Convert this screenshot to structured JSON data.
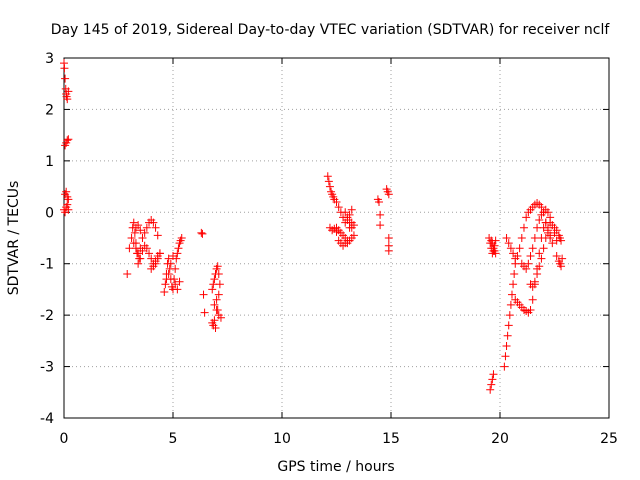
{
  "chart_data": {
    "type": "scatter",
    "title": "Day 145 of 2019, Sidereal Day-to-day VTEC variation (SDTVAR) for receiver nclf",
    "xlabel": "GPS time / hours",
    "ylabel": "SDTVAR / TECUs",
    "xlim": [
      0,
      25
    ],
    "ylim": [
      -4,
      3
    ],
    "xticks": [
      "0",
      "5",
      "10",
      "15",
      "20",
      "25"
    ],
    "yticks": [
      "-4",
      "-3",
      "-2",
      "-1",
      "0",
      "1",
      "2",
      "3"
    ],
    "grid": true,
    "marker": "plus",
    "color": "#ff0000",
    "series": [
      {
        "name": "SDTVAR",
        "x": [
          0.0,
          0.02,
          0.05,
          0.08,
          0.1,
          0.12,
          0.15,
          0.2,
          0.05,
          0.1,
          0.15,
          0.2,
          0.05,
          0.1,
          0.15,
          0.2,
          0.0,
          0.05,
          0.1,
          0.15,
          0.2,
          2.9,
          3.0,
          3.1,
          3.15,
          3.2,
          3.25,
          3.3,
          3.35,
          3.4,
          3.45,
          3.5,
          3.3,
          3.4,
          3.5,
          3.6,
          3.7,
          3.8,
          3.9,
          4.0,
          4.1,
          4.2,
          4.3,
          3.8,
          3.9,
          4.0,
          4.1,
          4.2,
          4.3,
          4.4,
          4.0,
          4.1,
          4.2,
          4.3,
          4.4,
          3.2,
          3.3,
          3.4,
          3.5,
          3.6,
          3.7,
          4.6,
          4.65,
          4.7,
          4.75,
          4.8,
          4.85,
          4.9,
          4.95,
          5.0,
          5.05,
          5.1,
          5.15,
          5.2,
          5.25,
          5.3,
          5.35,
          5.4,
          4.7,
          4.8,
          4.9,
          5.0,
          5.1,
          5.2,
          5.3,
          6.3,
          6.35,
          6.4,
          6.45,
          6.8,
          6.85,
          6.9,
          6.95,
          7.0,
          7.05,
          7.1,
          7.15,
          6.9,
          7.0,
          7.1,
          7.2,
          6.8,
          6.9,
          7.0,
          7.1,
          6.85,
          6.95,
          7.05,
          12.1,
          12.15,
          12.2,
          12.25,
          12.3,
          12.35,
          12.4,
          12.5,
          12.6,
          12.7,
          12.8,
          12.9,
          13.0,
          13.1,
          13.2,
          13.3,
          12.5,
          12.6,
          12.7,
          12.8,
          12.9,
          13.0,
          13.1,
          13.2,
          12.6,
          12.7,
          12.8,
          12.9,
          13.0,
          13.1,
          13.2,
          12.9,
          13.0,
          13.1,
          13.2,
          13.3,
          12.2,
          12.3,
          12.4,
          12.5,
          14.4,
          14.45,
          14.5,
          14.5,
          14.8,
          14.85,
          14.9,
          14.9,
          14.9,
          14.9,
          19.5,
          19.55,
          19.6,
          19.65,
          19.7,
          19.75,
          19.8,
          19.55,
          19.6,
          19.65,
          19.7,
          19.6,
          19.65,
          19.7,
          19.75,
          19.8,
          20.2,
          20.25,
          20.3,
          20.35,
          20.4,
          20.45,
          20.5,
          20.55,
          20.6,
          20.65,
          20.7,
          20.3,
          20.4,
          20.5,
          20.6,
          20.7,
          20.8,
          20.9,
          21.0,
          21.1,
          21.2,
          21.3,
          21.4,
          21.5,
          21.6,
          21.7,
          21.8,
          21.9,
          22.0,
          22.1,
          22.2,
          22.3,
          22.4,
          20.7,
          20.8,
          20.9,
          21.0,
          21.1,
          21.2,
          21.3,
          21.4,
          21.5,
          21.6,
          21.7,
          21.8,
          21.9,
          22.0,
          22.1,
          22.2,
          22.3,
          21.0,
          21.1,
          21.2,
          21.3,
          21.4,
          21.5,
          21.6,
          21.7,
          21.8,
          21.9,
          22.0,
          22.1,
          22.2,
          22.3,
          22.4,
          22.5,
          22.6,
          21.4,
          21.5,
          21.6,
          21.7,
          21.8,
          21.9,
          22.0,
          22.1,
          22.2,
          22.3,
          22.5,
          22.6,
          22.7,
          22.75,
          22.8,
          22.6,
          22.7,
          22.75,
          22.8,
          22.85
        ],
        "y": [
          2.9,
          2.8,
          2.6,
          2.4,
          2.3,
          2.25,
          2.2,
          2.35,
          1.3,
          1.35,
          1.4,
          1.42,
          0.35,
          0.4,
          0.3,
          0.25,
          0.05,
          0.0,
          0.1,
          0.15,
          0.05,
          -1.2,
          -0.7,
          -0.5,
          -0.3,
          -0.2,
          -0.4,
          -0.6,
          -0.8,
          -1.0,
          -0.9,
          -0.7,
          -0.3,
          -0.25,
          -0.35,
          -0.5,
          -0.4,
          -0.3,
          -0.2,
          -0.15,
          -0.2,
          -0.3,
          -0.45,
          -0.7,
          -0.8,
          -0.9,
          -1.0,
          -0.95,
          -0.85,
          -0.8,
          -1.1,
          -1.05,
          -1.0,
          -0.9,
          -0.8,
          -0.6,
          -0.7,
          -0.8,
          -0.9,
          -0.75,
          -0.65,
          -1.55,
          -1.4,
          -1.2,
          -1.0,
          -0.9,
          -1.1,
          -1.3,
          -1.45,
          -1.5,
          -1.3,
          -1.1,
          -0.9,
          -0.8,
          -0.7,
          -0.6,
          -0.55,
          -0.5,
          -1.3,
          -1.2,
          -1.0,
          -0.85,
          -1.4,
          -1.5,
          -1.35,
          -0.4,
          -0.42,
          -1.6,
          -1.95,
          -1.5,
          -1.4,
          -1.3,
          -1.2,
          -1.1,
          -1.05,
          -1.2,
          -1.4,
          -1.8,
          -1.9,
          -2.0,
          -2.05,
          -2.15,
          -2.1,
          -1.7,
          -1.6,
          -2.2,
          -2.25,
          -1.9,
          0.7,
          0.6,
          0.5,
          0.4,
          0.35,
          0.3,
          0.25,
          -0.3,
          -0.35,
          -0.4,
          -0.45,
          -0.5,
          -0.6,
          -0.55,
          -0.5,
          -0.45,
          0.2,
          0.1,
          0.0,
          -0.1,
          -0.2,
          -0.15,
          -0.05,
          0.05,
          -0.55,
          -0.6,
          -0.65,
          -0.6,
          -0.55,
          -0.3,
          -0.2,
          0.0,
          -0.1,
          -0.2,
          -0.3,
          -0.25,
          -0.3,
          -0.35,
          -0.32,
          -0.38,
          0.25,
          0.2,
          -0.05,
          -0.25,
          0.45,
          0.4,
          0.35,
          -0.5,
          -0.65,
          -0.75,
          -0.5,
          -0.6,
          -0.7,
          -0.8,
          -0.75,
          -0.65,
          -0.55,
          -3.45,
          -3.35,
          -3.25,
          -3.15,
          -0.55,
          -0.6,
          -0.7,
          -0.75,
          -0.8,
          -3.0,
          -2.8,
          -2.6,
          -2.4,
          -2.2,
          -2.0,
          -1.8,
          -1.6,
          -1.4,
          -1.2,
          -1.0,
          -0.5,
          -0.6,
          -0.7,
          -0.8,
          -0.9,
          -0.85,
          -0.7,
          -0.5,
          -0.3,
          -0.1,
          0.0,
          0.05,
          0.1,
          0.15,
          0.18,
          0.15,
          0.1,
          0.0,
          -0.2,
          -0.4,
          -0.5,
          -0.6,
          -1.7,
          -1.75,
          -1.8,
          -1.85,
          -1.9,
          -1.92,
          -1.95,
          -1.9,
          -1.7,
          -1.4,
          -1.1,
          -0.8,
          -0.5,
          -0.3,
          -0.2,
          -0.3,
          -0.45,
          -1.0,
          -1.05,
          -1.1,
          -1.0,
          -0.85,
          -0.7,
          -0.5,
          -0.3,
          -0.15,
          -0.05,
          0.0,
          0.05,
          0.0,
          -0.1,
          -0.25,
          -0.4,
          -0.55,
          -1.4,
          -1.45,
          -1.35,
          -1.2,
          -1.05,
          -0.9,
          -0.7,
          -0.5,
          -0.35,
          -0.2,
          -0.3,
          -0.35,
          -0.45,
          -0.5,
          -0.55,
          -0.85,
          -0.95,
          -1.0,
          -1.05,
          -0.9
        ]
      }
    ]
  }
}
